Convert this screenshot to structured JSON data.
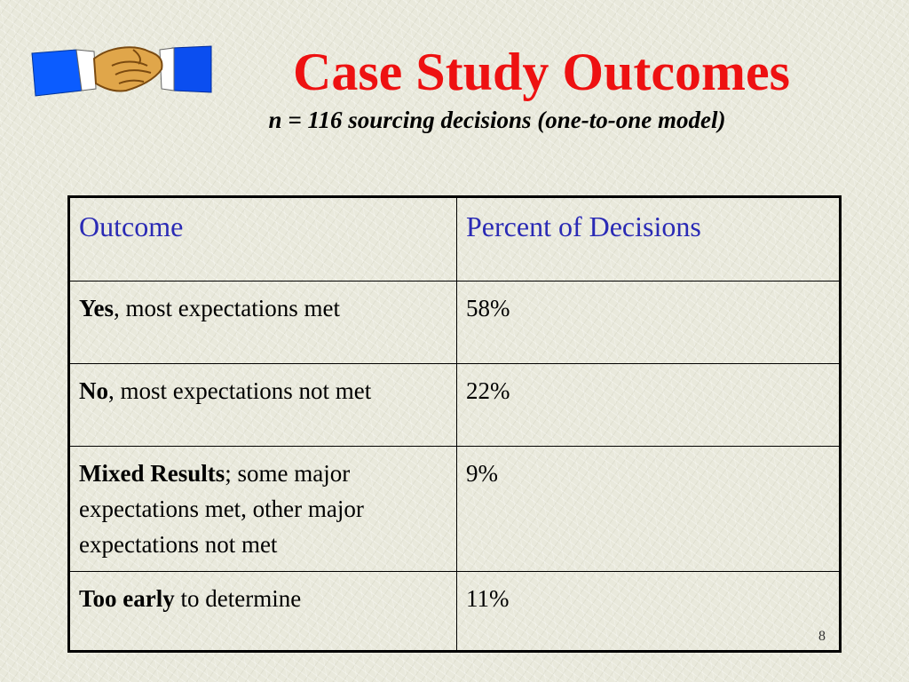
{
  "slide": {
    "title": "Case Study Outcomes",
    "subtitle": "n = 116 sourcing decisions (one-to-one model)",
    "logo_icon": "handshake-icon",
    "page_number": "8",
    "colors": {
      "title": "#ee1111",
      "header_text": "#2a2ab5",
      "logo_blue": "#0b5cff"
    }
  },
  "table": {
    "headers": [
      "Outcome",
      "Percent of Decisions"
    ],
    "rows": [
      {
        "bold": "Yes",
        "rest": ", most expectations met",
        "percent": "58%"
      },
      {
        "bold": "No",
        "rest": ", most expectations not met",
        "percent": "22%"
      },
      {
        "bold": "Mixed Results",
        "rest": "; some major expectations met, other major expectations not met",
        "percent": "9%"
      },
      {
        "bold": "Too early",
        "rest": " to determine",
        "percent": "11%"
      }
    ]
  }
}
